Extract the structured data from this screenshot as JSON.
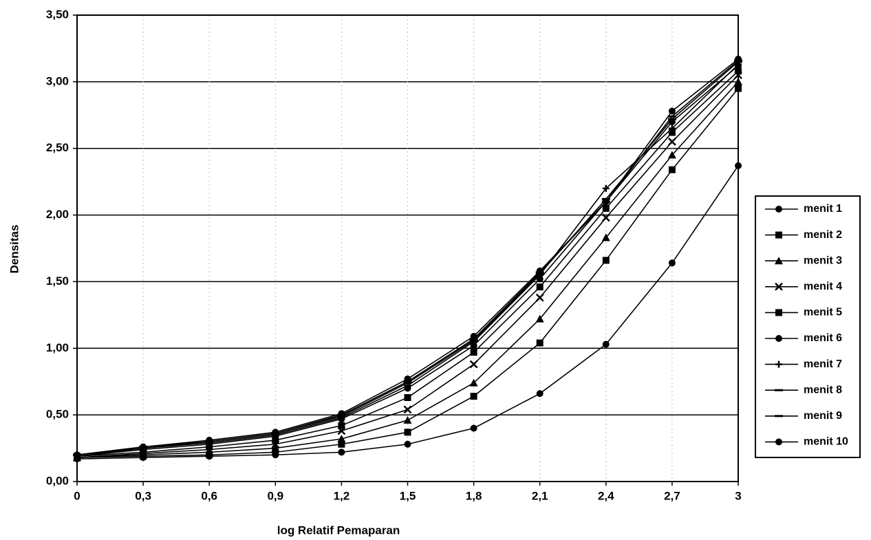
{
  "chart_data": {
    "type": "line",
    "x_label": "log Relatif Pemaparan",
    "y_label": "Densitas",
    "x": [
      0,
      0.3,
      0.6,
      0.9,
      1.2,
      1.5,
      1.8,
      2.1,
      2.4,
      2.7,
      3
    ],
    "xlim": [
      0,
      3
    ],
    "xticks": [
      0,
      {
        "value": 0.3,
        "label": "0,3"
      },
      {
        "value": 0.6,
        "label": "0,6"
      },
      {
        "value": 0.9,
        "label": "0,9"
      },
      {
        "value": 1.2,
        "label": "1,2"
      },
      {
        "value": 1.5,
        "label": "1,5"
      },
      {
        "value": 1.8,
        "label": "1,8"
      },
      {
        "value": 2.1,
        "label": "2,1"
      },
      {
        "value": 2.4,
        "label": "2,4"
      },
      {
        "value": 2.7,
        "label": "2,7"
      },
      3
    ],
    "ylim": [
      0,
      3.5
    ],
    "yticks": [
      {
        "value": 0,
        "label": "0,00"
      },
      {
        "value": 0.5,
        "label": "0,50"
      },
      {
        "value": 1,
        "label": "1,00"
      },
      {
        "value": 1.5,
        "label": "1,50"
      },
      {
        "value": 2,
        "label": "2,00"
      },
      {
        "value": 2.5,
        "label": "2,50"
      },
      {
        "value": 3,
        "label": "3,00"
      },
      {
        "value": 3.5,
        "label": "3,50"
      }
    ],
    "grid": true,
    "legend": "right",
    "series": [
      {
        "name": "menit 1",
        "color": "#000000",
        "marker": "circle",
        "values": [
          0.17,
          0.18,
          0.19,
          0.2,
          0.22,
          0.28,
          0.4,
          0.66,
          1.03,
          1.64,
          2.37
        ]
      },
      {
        "name": "menit 2",
        "color": "#000000",
        "marker": "square",
        "values": [
          0.18,
          0.19,
          0.2,
          0.22,
          0.28,
          0.37,
          0.64,
          1.04,
          1.66,
          2.34,
          2.95
        ]
      },
      {
        "name": "menit 3",
        "color": "#000000",
        "marker": "triangle",
        "values": [
          0.18,
          0.2,
          0.22,
          0.25,
          0.32,
          0.46,
          0.74,
          1.22,
          1.83,
          2.45,
          3.0
        ]
      },
      {
        "name": "menit 4",
        "color": "#000000",
        "marker": "x",
        "values": [
          0.18,
          0.21,
          0.24,
          0.28,
          0.38,
          0.54,
          0.88,
          1.38,
          1.98,
          2.55,
          3.05
        ]
      },
      {
        "name": "menit 5",
        "color": "#000000",
        "marker": "square",
        "values": [
          0.19,
          0.22,
          0.26,
          0.31,
          0.42,
          0.63,
          0.97,
          1.46,
          2.05,
          2.62,
          3.08
        ]
      },
      {
        "name": "menit 6",
        "color": "#000000",
        "marker": "circle",
        "values": [
          0.19,
          0.24,
          0.28,
          0.34,
          0.47,
          0.7,
          1.02,
          1.52,
          2.1,
          2.7,
          3.12
        ]
      },
      {
        "name": "menit 7",
        "color": "#000000",
        "marker": "plus",
        "values": [
          0.19,
          0.25,
          0.29,
          0.35,
          0.48,
          0.72,
          1.05,
          1.55,
          2.2,
          2.65,
          3.13
        ]
      },
      {
        "name": "menit 8",
        "color": "#000000",
        "marker": "dash",
        "values": [
          0.2,
          0.25,
          0.3,
          0.36,
          0.49,
          0.74,
          1.06,
          1.56,
          2.12,
          2.72,
          3.15
        ]
      },
      {
        "name": "menit 9",
        "color": "#000000",
        "marker": "dash",
        "values": [
          0.2,
          0.26,
          0.3,
          0.36,
          0.5,
          0.75,
          1.07,
          1.57,
          2.1,
          2.74,
          3.16
        ]
      },
      {
        "name": "menit 10",
        "color": "#000000",
        "marker": "circle",
        "values": [
          0.2,
          0.26,
          0.31,
          0.37,
          0.51,
          0.77,
          1.09,
          1.58,
          2.1,
          2.78,
          3.17
        ]
      }
    ]
  }
}
